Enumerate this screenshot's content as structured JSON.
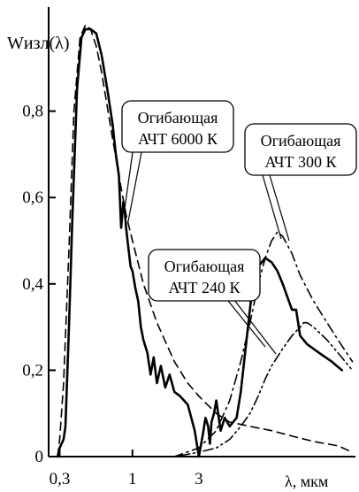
{
  "chart_data": {
    "type": "line",
    "title": "",
    "ylabel": "Wизл(λ)",
    "xlabel": "λ, мкм",
    "x_scale": "log",
    "xlim": [
      0.25,
      40
    ],
    "ylim": [
      0,
      1.0
    ],
    "x_ticks": [
      {
        "value": 0.3,
        "label": "0,3"
      },
      {
        "value": 1,
        "label": "1"
      },
      {
        "value": 3,
        "label": "3"
      }
    ],
    "y_ticks": [
      {
        "value": 0,
        "label": "0"
      },
      {
        "value": 0.2,
        "label": "0,2"
      },
      {
        "value": 0.4,
        "label": "0,4"
      },
      {
        "value": 0.6,
        "label": "0,6"
      },
      {
        "value": 0.8,
        "label": "0,8"
      }
    ],
    "grid": false,
    "series": [
      {
        "style": "solid",
        "x": [
          0.29,
          0.3,
          0.32,
          0.33,
          0.35,
          0.37,
          0.4,
          0.43,
          0.46,
          0.5,
          0.55,
          0.6,
          0.66,
          0.72,
          0.76,
          0.8,
          0.83,
          0.86,
          0.88,
          0.9,
          0.93,
          0.97,
          1.0,
          1.05,
          1.1,
          1.15,
          1.2,
          1.28,
          1.35,
          1.42,
          1.5,
          1.6,
          1.72,
          1.85,
          2.0,
          2.2,
          2.5,
          2.8,
          3.0,
          3.2,
          3.35,
          3.5,
          3.6,
          3.7,
          3.85,
          4.0,
          4.3,
          4.6,
          5.0,
          5.6,
          6.0,
          6.6,
          7.2,
          8.0,
          9.0,
          10.0,
          11.0,
          12.0,
          14.0,
          15.0,
          16.0,
          18.0,
          22.0,
          27.0,
          32.0
        ],
        "y": [
          0.0,
          0.02,
          0.04,
          0.07,
          0.3,
          0.55,
          0.85,
          0.97,
          0.99,
          0.99,
          0.98,
          0.93,
          0.85,
          0.77,
          0.7,
          0.65,
          0.53,
          0.59,
          0.57,
          0.53,
          0.49,
          0.44,
          0.43,
          0.39,
          0.36,
          0.3,
          0.27,
          0.24,
          0.19,
          0.23,
          0.17,
          0.21,
          0.16,
          0.19,
          0.15,
          0.14,
          0.12,
          0.06,
          0.0,
          0.05,
          0.09,
          0.07,
          0.03,
          0.08,
          0.1,
          0.13,
          0.06,
          0.09,
          0.07,
          0.09,
          0.15,
          0.27,
          0.38,
          0.44,
          0.46,
          0.45,
          0.43,
          0.4,
          0.34,
          0.34,
          0.28,
          0.26,
          0.24,
          0.22,
          0.2
        ]
      },
      {
        "style": "dashed",
        "name": "Огибающая АЧТ 6000 К",
        "x": [
          0.29,
          0.3,
          0.32,
          0.35,
          0.38,
          0.42,
          0.46,
          0.5,
          0.55,
          0.6,
          0.7,
          0.8,
          0.9,
          1.0,
          1.2,
          1.5,
          2.0,
          2.5,
          3.0,
          4.0,
          5.0,
          7.0,
          10.0,
          15.0,
          20.0,
          30.0,
          38.0
        ],
        "y": [
          0.0,
          0.04,
          0.17,
          0.48,
          0.8,
          0.97,
          1.0,
          0.99,
          0.95,
          0.89,
          0.76,
          0.65,
          0.56,
          0.5,
          0.4,
          0.31,
          0.22,
          0.17,
          0.14,
          0.1,
          0.08,
          0.07,
          0.06,
          0.045,
          0.035,
          0.025,
          0.01
        ]
      },
      {
        "style": "dash-dot",
        "name": "Огибающая АЧТ 300 К",
        "x": [
          1.0,
          2.0,
          3.0,
          4.0,
          5.0,
          6.0,
          7.0,
          8.0,
          9.0,
          10.0,
          11.0,
          12.0,
          14.0,
          16.0,
          20.0,
          25.0,
          30.0,
          38.0
        ],
        "y": [
          0.0,
          0.0,
          0.02,
          0.06,
          0.13,
          0.22,
          0.31,
          0.4,
          0.46,
          0.5,
          0.52,
          0.51,
          0.47,
          0.42,
          0.36,
          0.31,
          0.27,
          0.22
        ]
      },
      {
        "style": "dash-dot-dot",
        "name": "Огибающая АЧТ 240 К",
        "x": [
          1.0,
          2.0,
          3.0,
          4.0,
          5.0,
          6.0,
          7.0,
          8.0,
          9.0,
          10.0,
          12.0,
          14.0,
          16.0,
          17.0,
          18.0,
          20.0,
          25.0,
          30.0,
          38.0
        ],
        "y": [
          0.0,
          0.0,
          0.01,
          0.02,
          0.04,
          0.07,
          0.1,
          0.14,
          0.18,
          0.21,
          0.25,
          0.28,
          0.3,
          0.31,
          0.31,
          0.3,
          0.27,
          0.24,
          0.2
        ]
      }
    ],
    "annotations": [
      {
        "lines": [
          "Огибающая",
          "АЧТ 6000 К"
        ]
      },
      {
        "lines": [
          "Огибающая",
          "АЧТ 300 К"
        ]
      },
      {
        "lines": [
          "Огибающая",
          "АЧТ 240 К"
        ]
      }
    ]
  }
}
